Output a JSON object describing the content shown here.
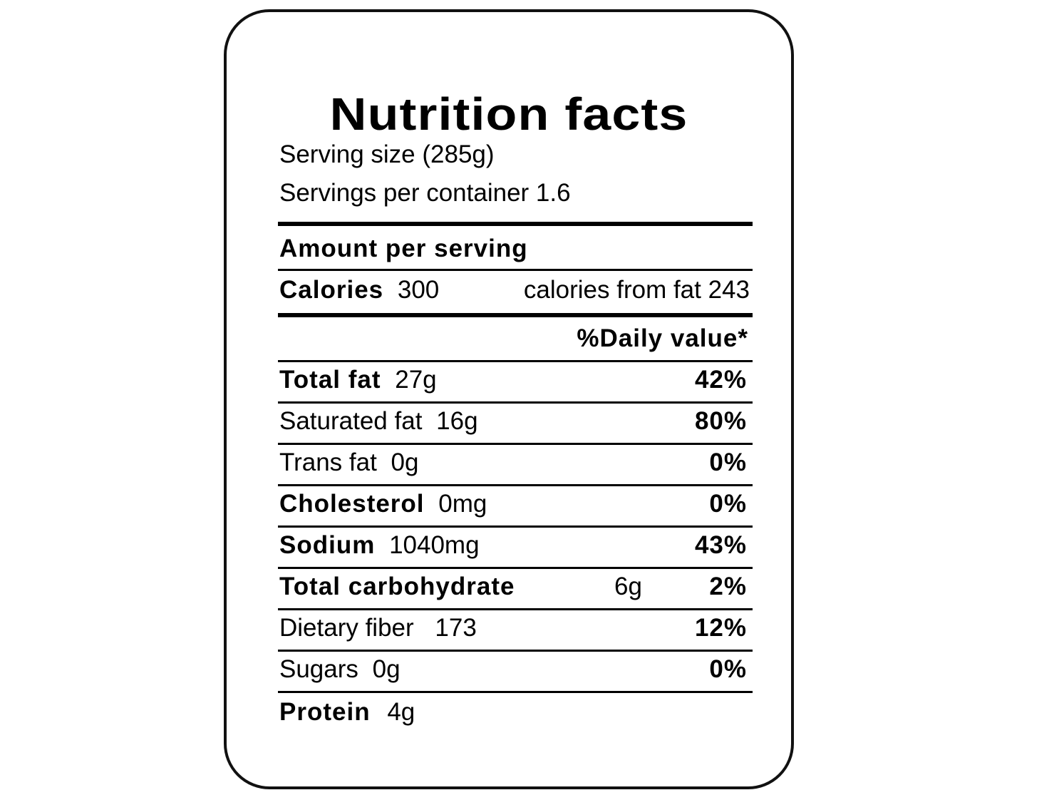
{
  "title": "Nutrition facts",
  "serving_size": "Serving size (285g)",
  "servings_per_container": "Servings per container 1.6",
  "amount_per_serving": "Amount per serving",
  "calories": {
    "label": "Calories",
    "value": "300",
    "from_fat": "calories from fat 243"
  },
  "daily_value_header": "%Daily value*",
  "rows": [
    {
      "label": "Total fat",
      "amount": "27g",
      "pct": "42%"
    },
    {
      "label": "Saturated fat",
      "amount": "16g",
      "pct": "80%"
    },
    {
      "label": "Trans fat",
      "amount": "0g",
      "pct": "0%"
    },
    {
      "label": "Cholesterol",
      "amount": "0mg",
      "pct": "0%"
    },
    {
      "label": "Sodium",
      "amount": "1040mg",
      "pct": "43%"
    },
    {
      "label": "Total carbohydrate",
      "amount": "6g",
      "pct": "2%"
    },
    {
      "label": "Dietary fiber",
      "amount": "173",
      "pct": "12%"
    },
    {
      "label": "Sugars",
      "amount": "0g",
      "pct": "0%"
    },
    {
      "label": "Protein",
      "amount": "4g"
    }
  ]
}
